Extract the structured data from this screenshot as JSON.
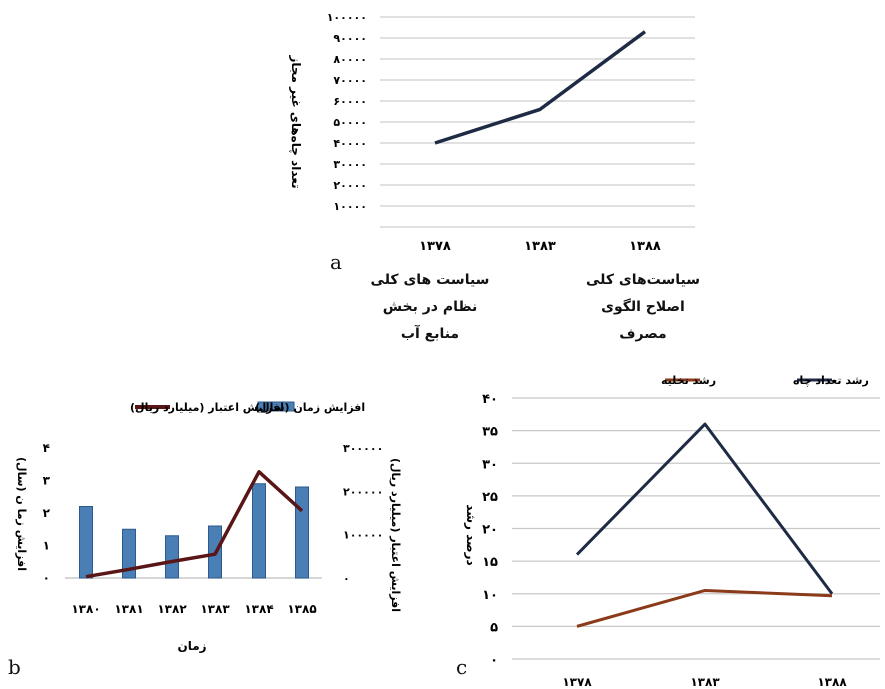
{
  "chart_data": [
    {
      "id": "a",
      "type": "line",
      "panel_label": "a",
      "ylabel": "تعداد چاه‌های غیر مجاز",
      "x": [
        "۱۳۷۸",
        "۱۳۸۳",
        "۱۳۸۸"
      ],
      "ylim": [
        0,
        100000
      ],
      "yticks": [
        10000,
        20000,
        30000,
        40000,
        50000,
        60000,
        70000,
        80000,
        90000,
        100000
      ],
      "ytick_labels": [
        "۱۰۰۰۰",
        "۲۰۰۰۰",
        "۳۰۰۰۰",
        "۴۰۰۰۰",
        "۵۰۰۰۰",
        "۶۰۰۰۰",
        "۷۰۰۰۰",
        "۸۰۰۰۰",
        "۹۰۰۰۰",
        "۱۰۰۰۰۰"
      ],
      "grid": true,
      "series": [
        {
          "values": [
            40000,
            56000,
            93000
          ],
          "color": "#1f2a44"
        }
      ],
      "annotations": [
        {
          "x": "۱۳۷۸",
          "lines": [
            "سیاست های کلی",
            "نظام در بخش",
            "منابع آب"
          ]
        },
        {
          "x": "۱۳۸۸",
          "lines": [
            "سیاست‌های کلی",
            "اصلاح الگوی",
            "مصرف"
          ]
        }
      ]
    },
    {
      "id": "b",
      "type": "bar+line",
      "panel_label": "b",
      "xlabel": "زمان",
      "x": [
        "۱۳۸۰",
        "۱۳۸۱",
        "۱۳۸۲",
        "۱۳۸۳",
        "۱۳۸۴",
        "۱۳۸۵"
      ],
      "y_left": {
        "label": "افزایش زما ن (سال)",
        "lim": [
          0,
          4
        ],
        "ticks": [
          0,
          1,
          2,
          3,
          4
        ],
        "tick_labels": [
          "۰",
          "۱",
          "۲",
          "۳",
          "۴"
        ]
      },
      "y_right": {
        "label": "افزایش اعتبار (میلیارد ریال)",
        "lim": [
          0,
          300000
        ],
        "ticks": [
          0,
          100000,
          200000,
          300000
        ],
        "tick_labels": [
          "۰",
          "۱۰۰۰۰۰",
          "۲۰۰۰۰۰",
          "۳۰۰۰۰۰"
        ]
      },
      "legend": {
        "placement": "top"
      },
      "series": [
        {
          "name": "افزایش زمان (سال)",
          "kind": "bar",
          "axis": "left",
          "color": "#4a7fb5",
          "values": [
            2.2,
            1.5,
            1.3,
            1.6,
            2.9,
            2.8
          ]
        },
        {
          "name": "افزایش اعتبار (میلیارد ریال)",
          "kind": "line",
          "axis": "right",
          "color": "#5a1616",
          "values": [
            3000,
            20000,
            38000,
            55000,
            245000,
            155000
          ]
        }
      ]
    },
    {
      "id": "c",
      "type": "line",
      "panel_label": "c",
      "ylabel": "درصد رشد",
      "x": [
        "۱۳۷۸",
        "۱۳۸۳",
        "۱۳۸۸"
      ],
      "ylim": [
        0,
        40
      ],
      "yticks": [
        0,
        5,
        10,
        15,
        20,
        25,
        30,
        35,
        40
      ],
      "ytick_labels": [
        "۰",
        "۵",
        "۱۰",
        "۱۵",
        "۲۰",
        "۲۵",
        "۳۰",
        "۳۵",
        "۴۰"
      ],
      "grid": true,
      "legend": {
        "placement": "top"
      },
      "series": [
        {
          "name": "رشد تعداد چاه",
          "values": [
            16,
            36,
            10
          ],
          "color": "#1f2a44"
        },
        {
          "name": "رشد تخلیه",
          "values": [
            5,
            10.5,
            9.7
          ],
          "color": "#8b3a1a"
        }
      ]
    }
  ]
}
